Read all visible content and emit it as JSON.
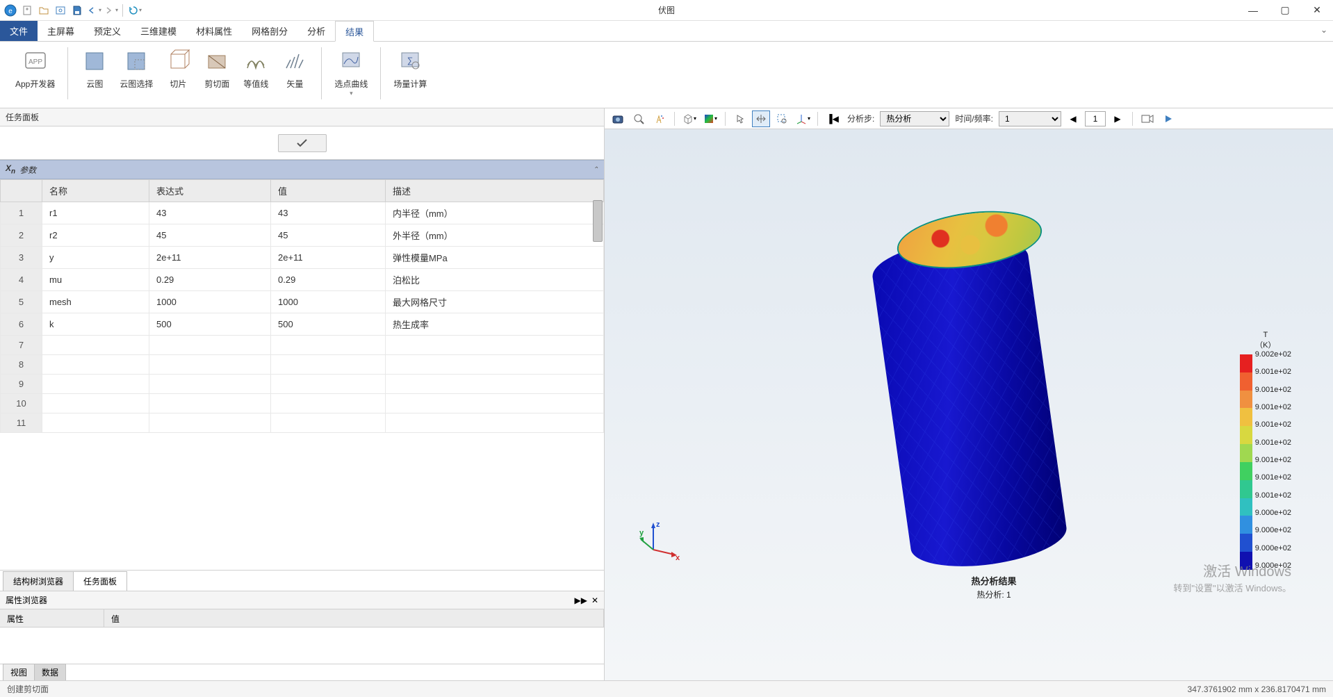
{
  "app": {
    "title": "伏图"
  },
  "titlebar_icons": [
    "logo",
    "new",
    "open",
    "screenshot",
    "save",
    "undo",
    "redo",
    "refresh"
  ],
  "window_controls": {
    "min": "—",
    "max": "▢",
    "close": "✕"
  },
  "menu": {
    "file": "文件",
    "items": [
      "主屏幕",
      "预定义",
      "三维建模",
      "材料属性",
      "网格剖分",
      "分析",
      "结果"
    ],
    "active_index": 6
  },
  "ribbon": {
    "groups": [
      {
        "items": [
          {
            "label": "App开发器",
            "icon": "app"
          }
        ]
      },
      {
        "items": [
          {
            "label": "云图",
            "icon": "cloud-plot"
          },
          {
            "label": "云图选择",
            "icon": "cloud-select"
          },
          {
            "label": "切片",
            "icon": "slice"
          },
          {
            "label": "剪切面",
            "icon": "clip"
          },
          {
            "label": "等值线",
            "icon": "contour"
          },
          {
            "label": "矢量",
            "icon": "vector"
          }
        ]
      },
      {
        "items": [
          {
            "label": "选点曲线",
            "icon": "curve",
            "dropdown": true
          }
        ]
      },
      {
        "items": [
          {
            "label": "场量计算",
            "icon": "calc"
          }
        ]
      }
    ]
  },
  "task_panel": {
    "title": "任务面板",
    "section_title": "Xn 参数",
    "headers": [
      "名称",
      "表达式",
      "值",
      "描述"
    ],
    "rows": [
      {
        "n": "1",
        "name": "r1",
        "expr": "43",
        "val": "43",
        "desc": "内半径（mm）"
      },
      {
        "n": "2",
        "name": "r2",
        "expr": "45",
        "val": "45",
        "desc": "外半径（mm）"
      },
      {
        "n": "3",
        "name": "y",
        "expr": "2e+11",
        "val": "2e+11",
        "desc": "弹性模量MPa"
      },
      {
        "n": "4",
        "name": "mu",
        "expr": "0.29",
        "val": "0.29",
        "desc": "泊松比"
      },
      {
        "n": "5",
        "name": "mesh",
        "expr": "1000",
        "val": "1000",
        "desc": "最大网格尺寸"
      },
      {
        "n": "6",
        "name": "k",
        "expr": "500",
        "val": "500",
        "desc": "热生成率"
      },
      {
        "n": "7",
        "name": "",
        "expr": "",
        "val": "",
        "desc": ""
      },
      {
        "n": "8",
        "name": "",
        "expr": "",
        "val": "",
        "desc": ""
      },
      {
        "n": "9",
        "name": "",
        "expr": "",
        "val": "",
        "desc": ""
      },
      {
        "n": "10",
        "name": "",
        "expr": "",
        "val": "",
        "desc": ""
      },
      {
        "n": "11",
        "name": "",
        "expr": "",
        "val": "",
        "desc": ""
      }
    ],
    "bottom_tabs": [
      "结构树浏览器",
      "任务面板"
    ],
    "bottom_active": 1
  },
  "prop_browser": {
    "title": "属性浏览器",
    "columns": [
      "属性",
      "值"
    ],
    "tabs": [
      "视图",
      "数据"
    ],
    "active_tab": 1
  },
  "view_toolbar": {
    "analysis_step_label": "分析步:",
    "analysis_step_value": "热分析",
    "time_label": "时间/频率:",
    "time_value": "1",
    "frame_value": "1"
  },
  "result": {
    "title": "热分析结果",
    "subtitle": "热分析: 1"
  },
  "legend": {
    "title": "T",
    "unit": "（K）",
    "colors": [
      "#e62020",
      "#f06030",
      "#f09040",
      "#f0c040",
      "#d8d840",
      "#a0d850",
      "#40d060",
      "#30c890",
      "#30c0c0",
      "#3090e0",
      "#2050d0",
      "#1010b0"
    ],
    "labels": [
      "9.002e+02",
      "9.001e+02",
      "9.001e+02",
      "9.001e+02",
      "9.001e+02",
      "9.001e+02",
      "9.001e+02",
      "9.001e+02",
      "9.001e+02",
      "9.000e+02",
      "9.000e+02",
      "9.000e+02",
      "9.000e+02"
    ]
  },
  "triad": {
    "x": "x",
    "y": "y",
    "z": "z"
  },
  "watermark": {
    "line1": "激活 Windows",
    "line2": "转到\"设置\"以激活 Windows。"
  },
  "statusbar": {
    "left": "创建剪切面",
    "right": "347.3761902 mm x 236.8170471 mm"
  }
}
